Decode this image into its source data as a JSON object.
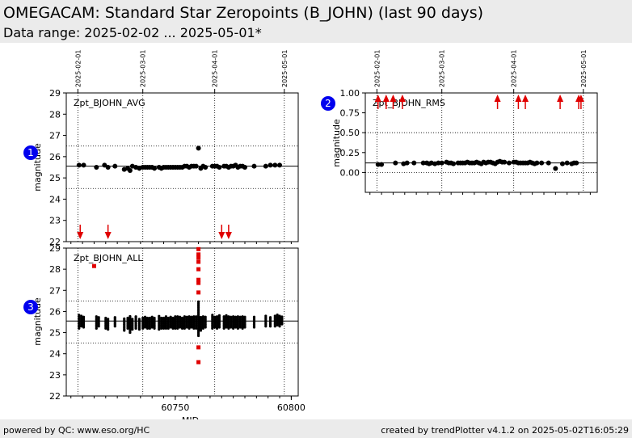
{
  "header": {
    "title": "OMEGACAM: Standard Star Zeropoints (B_JOHN) (last 90 days)",
    "subtitle": "Data range: 2025-02-02 ... 2025-05-01*"
  },
  "footer": {
    "left": "powered by QC: www.eso.org/HC",
    "right": "created by trendPlotter v4.1.2 on 2025-05-02T16:05:29"
  },
  "colors": {
    "data": "#000000",
    "outlier": "#e00000",
    "badge": "#0000ee",
    "header_bg": "#ebebeb"
  },
  "chart_data": [
    {
      "panel": 1,
      "type": "scatter",
      "title": "Zpt_BJOHN_AVG",
      "ylabel": "magnitude",
      "xlabel": "",
      "xlim": [
        60703,
        60803
      ],
      "ylim": [
        22,
        29
      ],
      "yticks": [
        22,
        23,
        24,
        25,
        26,
        27,
        28,
        29
      ],
      "date_ticks": [
        {
          "mjd": 60708,
          "label": "2025-02-01"
        },
        {
          "mjd": 60736,
          "label": "2025-03-01"
        },
        {
          "mjd": 60767,
          "label": "2025-04-01"
        },
        {
          "mjd": 60797,
          "label": "2025-05-01"
        }
      ],
      "reference": 25.55,
      "limits": [
        24.5,
        26.5
      ],
      "points": [
        [
          60708.5,
          25.6
        ],
        [
          60710.5,
          25.6
        ],
        [
          60716,
          25.5
        ],
        [
          60719.5,
          25.6
        ],
        [
          60721,
          25.5
        ],
        [
          60724,
          25.55
        ],
        [
          60728,
          25.4
        ],
        [
          60729.5,
          25.45
        ],
        [
          60730.5,
          25.35
        ],
        [
          60731.5,
          25.55
        ],
        [
          60733,
          25.5
        ],
        [
          60734.5,
          25.45
        ],
        [
          60736,
          25.5
        ],
        [
          60737,
          25.5
        ],
        [
          60738,
          25.5
        ],
        [
          60739,
          25.5
        ],
        [
          60740,
          25.5
        ],
        [
          60741,
          25.45
        ],
        [
          60743,
          25.5
        ],
        [
          60744,
          25.45
        ],
        [
          60745,
          25.5
        ],
        [
          60746,
          25.5
        ],
        [
          60747,
          25.5
        ],
        [
          60748,
          25.5
        ],
        [
          60749,
          25.5
        ],
        [
          60750,
          25.5
        ],
        [
          60751,
          25.5
        ],
        [
          60752,
          25.5
        ],
        [
          60753,
          25.5
        ],
        [
          60754,
          25.55
        ],
        [
          60755,
          25.55
        ],
        [
          60756,
          25.5
        ],
        [
          60757,
          25.55
        ],
        [
          60758,
          25.55
        ],
        [
          60759,
          25.55
        ],
        [
          60760,
          26.4
        ],
        [
          60761,
          25.45
        ],
        [
          60762,
          25.55
        ],
        [
          60763,
          25.5
        ],
        [
          60766,
          25.55
        ],
        [
          60767,
          25.55
        ],
        [
          60768,
          25.55
        ],
        [
          60769,
          25.5
        ],
        [
          60771,
          25.55
        ],
        [
          60772,
          25.55
        ],
        [
          60773,
          25.5
        ],
        [
          60774,
          25.55
        ],
        [
          60775,
          25.55
        ],
        [
          60776,
          25.6
        ],
        [
          60777,
          25.5
        ],
        [
          60778,
          25.55
        ],
        [
          60779,
          25.55
        ],
        [
          60780,
          25.5
        ],
        [
          60784,
          25.55
        ],
        [
          60789,
          25.55
        ],
        [
          60791,
          25.6
        ],
        [
          60793,
          25.6
        ],
        [
          60795,
          25.6
        ]
      ],
      "outliers_low": [
        60709,
        60721,
        60770,
        60773
      ],
      "outliers_high": []
    },
    {
      "panel": 2,
      "type": "scatter",
      "title": "Zpt_BJOHN_RMS",
      "ylabel": "magnitude",
      "xlabel": "",
      "xlim": [
        60703,
        60803
      ],
      "ylim": [
        -0.25,
        1.0
      ],
      "yticks": [
        0.0,
        0.25,
        0.5,
        0.75,
        1.0
      ],
      "ytick_labels": [
        "0.00",
        "0.25",
        "0.50",
        "0.75",
        "1.00"
      ],
      "date_ticks": [
        {
          "mjd": 60708,
          "label": "2025-02-01"
        },
        {
          "mjd": 60736,
          "label": "2025-03-01"
        },
        {
          "mjd": 60767,
          "label": "2025-04-01"
        },
        {
          "mjd": 60797,
          "label": "2025-05-01"
        }
      ],
      "reference": 0.12,
      "limits": [
        0.0,
        0.5
      ],
      "points": [
        [
          60708.5,
          0.1
        ],
        [
          60710,
          0.1
        ],
        [
          60716,
          0.12
        ],
        [
          60719.5,
          0.11
        ],
        [
          60721,
          0.12
        ],
        [
          60724,
          0.12
        ],
        [
          60728,
          0.12
        ],
        [
          60729.5,
          0.12
        ],
        [
          60730.5,
          0.11
        ],
        [
          60731.5,
          0.12
        ],
        [
          60733,
          0.11
        ],
        [
          60734.5,
          0.12
        ],
        [
          60736,
          0.12
        ],
        [
          60738,
          0.13
        ],
        [
          60739,
          0.12
        ],
        [
          60740,
          0.12
        ],
        [
          60741,
          0.11
        ],
        [
          60743,
          0.12
        ],
        [
          60744,
          0.12
        ],
        [
          60745,
          0.12
        ],
        [
          60746,
          0.12
        ],
        [
          60747,
          0.13
        ],
        [
          60748,
          0.12
        ],
        [
          60749,
          0.12
        ],
        [
          60750,
          0.12
        ],
        [
          60751,
          0.13
        ],
        [
          60752,
          0.12
        ],
        [
          60753,
          0.11
        ],
        [
          60754,
          0.13
        ],
        [
          60755,
          0.12
        ],
        [
          60756,
          0.13
        ],
        [
          60757,
          0.13
        ],
        [
          60758,
          0.12
        ],
        [
          60759,
          0.11
        ],
        [
          60760,
          0.13
        ],
        [
          60761,
          0.14
        ],
        [
          60762,
          0.13
        ],
        [
          60763,
          0.13
        ],
        [
          60765,
          0.12
        ],
        [
          60767,
          0.13
        ],
        [
          60768,
          0.13
        ],
        [
          60769,
          0.12
        ],
        [
          60770,
          0.12
        ],
        [
          60771,
          0.12
        ],
        [
          60772,
          0.12
        ],
        [
          60773,
          0.12
        ],
        [
          60774,
          0.13
        ],
        [
          60775,
          0.12
        ],
        [
          60776,
          0.11
        ],
        [
          60777,
          0.12
        ],
        [
          60779,
          0.12
        ],
        [
          60782,
          0.12
        ],
        [
          60785,
          0.05
        ],
        [
          60788,
          0.11
        ],
        [
          60790,
          0.12
        ],
        [
          60792,
          0.11
        ],
        [
          60793,
          0.12
        ],
        [
          60794,
          0.12
        ]
      ],
      "outliers_low": [],
      "outliers_high": [
        60708.5,
        60712,
        60715,
        60719,
        60760,
        60769,
        60772,
        60787,
        60795,
        60796
      ]
    },
    {
      "panel": 3,
      "type": "scatter",
      "title": "Zpt_BJOHN_ALL",
      "ylabel": "magnitude",
      "xlabel": "MJD",
      "xlim": [
        60703,
        60803
      ],
      "ylim": [
        22,
        29
      ],
      "yticks": [
        22,
        23,
        24,
        25,
        26,
        27,
        28,
        29
      ],
      "xticks": [
        60750,
        60800
      ],
      "reference": 25.55,
      "limits": [
        24.5,
        26.5
      ],
      "columns": [
        [
          60708.5,
          25.2,
          25.85
        ],
        [
          60709.5,
          25.3,
          25.8
        ],
        [
          60710.5,
          25.25,
          25.8
        ],
        [
          60716,
          25.2,
          25.8
        ],
        [
          60717,
          25.3,
          25.75
        ],
        [
          60720,
          25.2,
          25.75
        ],
        [
          60721,
          25.15,
          25.7
        ],
        [
          60724,
          25.3,
          25.75
        ],
        [
          60728,
          25.1,
          25.7
        ],
        [
          60729.5,
          25.2,
          25.75
        ],
        [
          60730.5,
          25.0,
          25.8
        ],
        [
          60731.5,
          25.15,
          25.7
        ],
        [
          60733,
          25.2,
          25.8
        ],
        [
          60734.5,
          25.15,
          25.7
        ],
        [
          60736,
          25.2,
          25.75
        ],
        [
          60737,
          25.25,
          25.8
        ],
        [
          60738,
          25.2,
          25.7
        ],
        [
          60739,
          25.2,
          25.75
        ],
        [
          60740,
          25.25,
          25.75
        ],
        [
          60741,
          25.2,
          25.7
        ],
        [
          60743,
          25.15,
          25.8
        ],
        [
          60744,
          25.2,
          25.75
        ],
        [
          60745,
          25.2,
          25.75
        ],
        [
          60746,
          25.2,
          25.8
        ],
        [
          60747,
          25.2,
          25.75
        ],
        [
          60748,
          25.25,
          25.8
        ],
        [
          60749,
          25.2,
          25.75
        ],
        [
          60750,
          25.2,
          25.8
        ],
        [
          60751,
          25.2,
          25.8
        ],
        [
          60752,
          25.25,
          25.8
        ],
        [
          60753,
          25.2,
          25.75
        ],
        [
          60754,
          25.2,
          25.8
        ],
        [
          60755,
          25.25,
          25.8
        ],
        [
          60756,
          25.2,
          25.8
        ],
        [
          60757,
          25.25,
          25.8
        ],
        [
          60758,
          25.2,
          25.8
        ],
        [
          60759,
          25.2,
          25.8
        ],
        [
          60760,
          24.85,
          26.5
        ],
        [
          60761,
          25.1,
          25.75
        ],
        [
          60762,
          25.2,
          25.8
        ],
        [
          60763,
          25.25,
          25.8
        ],
        [
          60766,
          25.2,
          25.85
        ],
        [
          60767,
          25.25,
          25.8
        ],
        [
          60768,
          25.2,
          25.8
        ],
        [
          60769,
          25.25,
          25.85
        ],
        [
          60771,
          25.2,
          25.8
        ],
        [
          60772,
          25.25,
          25.85
        ],
        [
          60773,
          25.2,
          25.8
        ],
        [
          60774,
          25.25,
          25.8
        ],
        [
          60775,
          25.2,
          25.8
        ],
        [
          60776,
          25.25,
          25.8
        ],
        [
          60777,
          25.2,
          25.8
        ],
        [
          60778,
          25.25,
          25.8
        ],
        [
          60779,
          25.2,
          25.8
        ],
        [
          60780,
          25.25,
          25.75
        ],
        [
          60784,
          25.25,
          25.8
        ],
        [
          60789,
          25.3,
          25.8
        ],
        [
          60791,
          25.3,
          25.75
        ],
        [
          60793,
          25.3,
          25.85
        ],
        [
          60794,
          25.35,
          25.85
        ],
        [
          60795,
          25.3,
          25.8
        ],
        [
          60796,
          25.4,
          25.75
        ]
      ],
      "red_points": [
        [
          60715,
          28.15
        ],
        [
          60760,
          28.95
        ],
        [
          60760,
          28.7
        ],
        [
          60760,
          28.55
        ],
        [
          60760,
          28.35
        ],
        [
          60760,
          28.0
        ],
        [
          60760,
          27.5
        ],
        [
          60760,
          27.35
        ],
        [
          60760,
          26.9
        ],
        [
          60760,
          24.3
        ],
        [
          60760,
          23.6
        ]
      ]
    }
  ]
}
